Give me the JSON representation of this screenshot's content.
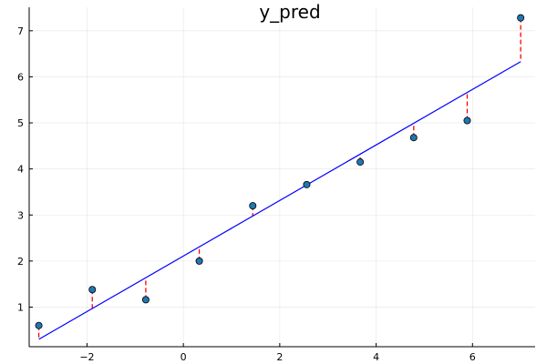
{
  "chart_data": {
    "type": "scatter",
    "title": "y_pred",
    "xlabel": "",
    "ylabel": "",
    "xlim": [
      -3.2,
      7.3
    ],
    "ylim": [
      0.14,
      7.51
    ],
    "xticks": [
      -2,
      0,
      2,
      4,
      6
    ],
    "yticks": [
      1,
      2,
      3,
      4,
      5,
      6,
      7
    ],
    "grid": true,
    "legend": "none",
    "points": {
      "x": [
        -3.0,
        -1.89,
        -0.78,
        0.33,
        1.44,
        2.56,
        3.67,
        4.78,
        5.89,
        7.0
      ],
      "y": [
        0.6,
        1.38,
        1.16,
        2.0,
        3.2,
        3.66,
        4.15,
        4.68,
        5.05,
        7.28
      ]
    },
    "fit_line": {
      "x": [
        -3.0,
        7.0
      ],
      "y": [
        0.3,
        6.33
      ]
    },
    "residual_lines": true,
    "colors": {
      "points": "#1f77b4",
      "fit_line": "#0000ff",
      "residuals": "#ff0000"
    }
  }
}
